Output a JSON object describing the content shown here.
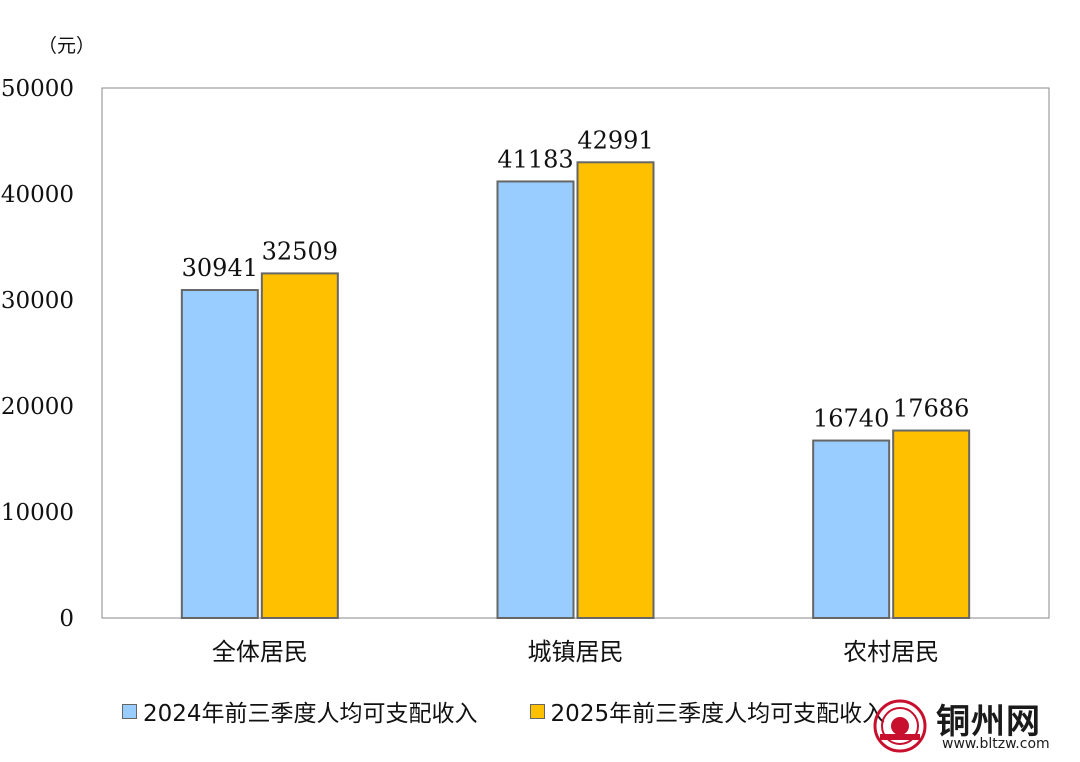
{
  "chart_data": {
    "type": "bar",
    "unit_label": "（元）",
    "categories": [
      "全体居民",
      "城镇居民",
      "农村居民"
    ],
    "series": [
      {
        "name": "2024年前三季度人均可支配收入",
        "color": "#99ccff",
        "values": [
          30941,
          41183,
          16740
        ]
      },
      {
        "name": "2025年前三季度人均可支配收入",
        "color": "#ffc000",
        "values": [
          32509,
          42991,
          17686
        ]
      }
    ],
    "ylim": [
      0,
      50000
    ],
    "yticks": [
      0,
      10000,
      20000,
      30000,
      40000,
      50000
    ],
    "grid": false,
    "legend_position": "bottom"
  },
  "watermark": {
    "name": "铜州网",
    "url": "www.bltzw.com"
  }
}
